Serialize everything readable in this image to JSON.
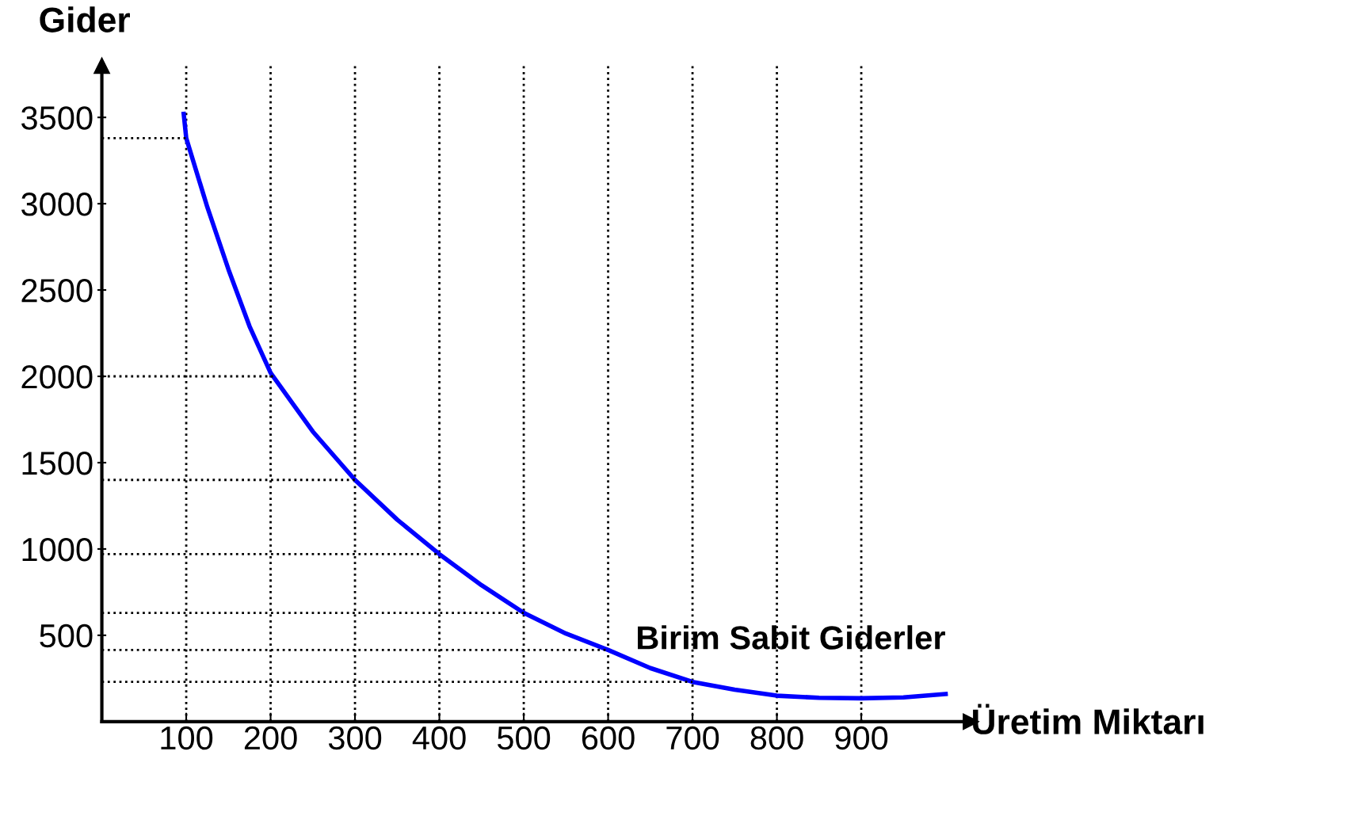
{
  "chart_data": {
    "type": "line",
    "xlabel": "Üretim Miktarı",
    "ylabel": "Gider",
    "xlim": [
      0,
      1030
    ],
    "ylim": [
      0,
      3800
    ],
    "xticks": [
      100,
      200,
      300,
      400,
      500,
      600,
      700,
      800,
      900
    ],
    "yticks": [
      500,
      1000,
      1500,
      2000,
      2500,
      3000,
      3500
    ],
    "series": [
      {
        "name": "Birim Sabit Giderler",
        "color": "#0000ff",
        "x": [
          97,
          100,
          125,
          150,
          175,
          200,
          250,
          300,
          350,
          400,
          450,
          500,
          550,
          600,
          650,
          700,
          750,
          800,
          850,
          900,
          950,
          1000
        ],
        "values": [
          3520,
          3380,
          2980,
          2620,
          2290,
          2020,
          1680,
          1400,
          1170,
          970,
          790,
          630,
          510,
          415,
          310,
          230,
          185,
          150,
          138,
          135,
          140,
          160
        ]
      }
    ],
    "ref_lines": [
      {
        "axis": "y",
        "value": 3380,
        "line_style": "dotted",
        "color": "#000000"
      },
      {
        "axis": "y",
        "value": 2000,
        "line_style": "dotted",
        "color": "#000000"
      },
      {
        "axis": "y",
        "value": 1400,
        "line_style": "dotted",
        "color": "#000000"
      },
      {
        "axis": "y",
        "value": 970,
        "line_style": "dotted",
        "color": "#000000"
      },
      {
        "axis": "y",
        "value": 630,
        "line_style": "dotted",
        "color": "#000000"
      },
      {
        "axis": "y",
        "value": 415,
        "line_style": "dotted",
        "color": "#000000"
      },
      {
        "axis": "y",
        "value": 230,
        "line_style": "dotted",
        "color": "#000000"
      }
    ],
    "grid": "x",
    "legend": false,
    "marker": "none",
    "line_style": "solid"
  }
}
